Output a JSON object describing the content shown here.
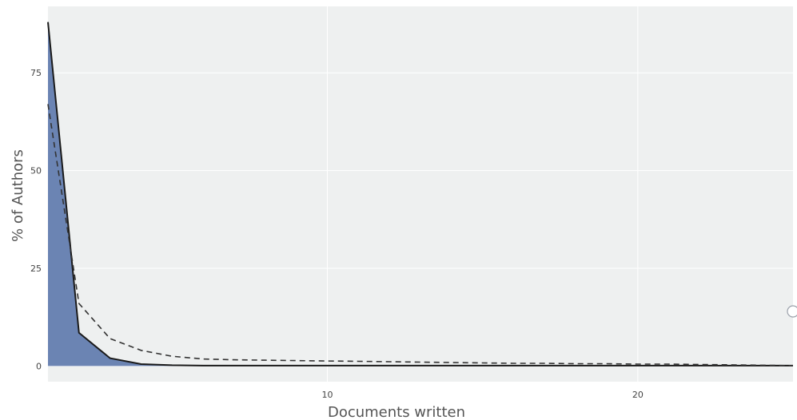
{
  "chart_data": {
    "type": "area",
    "title": "",
    "xlabel": "Documents written",
    "ylabel": "% of Authors",
    "xlim": [
      1,
      25
    ],
    "ylim": [
      -4,
      92
    ],
    "xticks": [
      10,
      20
    ],
    "yticks": [
      0,
      25,
      50,
      75
    ],
    "grid": true,
    "legend": "none",
    "series": [
      {
        "style": "solid-filled",
        "x": [
          1,
          2,
          3,
          4,
          5,
          6,
          7,
          8,
          9,
          10,
          11,
          12,
          13,
          14,
          15,
          16,
          17,
          18,
          19,
          20,
          21,
          22,
          23,
          24,
          25
        ],
        "y": [
          88,
          8.5,
          2,
          0.5,
          0.2,
          0.1,
          0.1,
          0.1,
          0.1,
          0.1,
          0.1,
          0.1,
          0.1,
          0.1,
          0.1,
          0.1,
          0.1,
          0.1,
          0.1,
          0.1,
          0.1,
          0.1,
          0.1,
          0.1,
          0.1
        ]
      },
      {
        "style": "dashed",
        "x": [
          1,
          2,
          3,
          4,
          5,
          6,
          7,
          8,
          9,
          10,
          11,
          12,
          13,
          14,
          15,
          16,
          17,
          18,
          19,
          20,
          21,
          22,
          23,
          24,
          25
        ],
        "y": [
          67,
          16,
          7,
          4,
          2.5,
          1.8,
          1.6,
          1.5,
          1.4,
          1.3,
          1.2,
          1.1,
          1.0,
          0.9,
          0.8,
          0.7,
          0.7,
          0.6,
          0.6,
          0.5,
          0.5,
          0.4,
          0.3,
          0.2,
          0.1
        ]
      }
    ]
  },
  "colors": {
    "plot_bg": "#eef0f0",
    "grid": "#ffffff",
    "fill": "#6b84b3",
    "line": "#1a1a1a",
    "dashed": "#333333",
    "marker": "#9aa0aa"
  }
}
